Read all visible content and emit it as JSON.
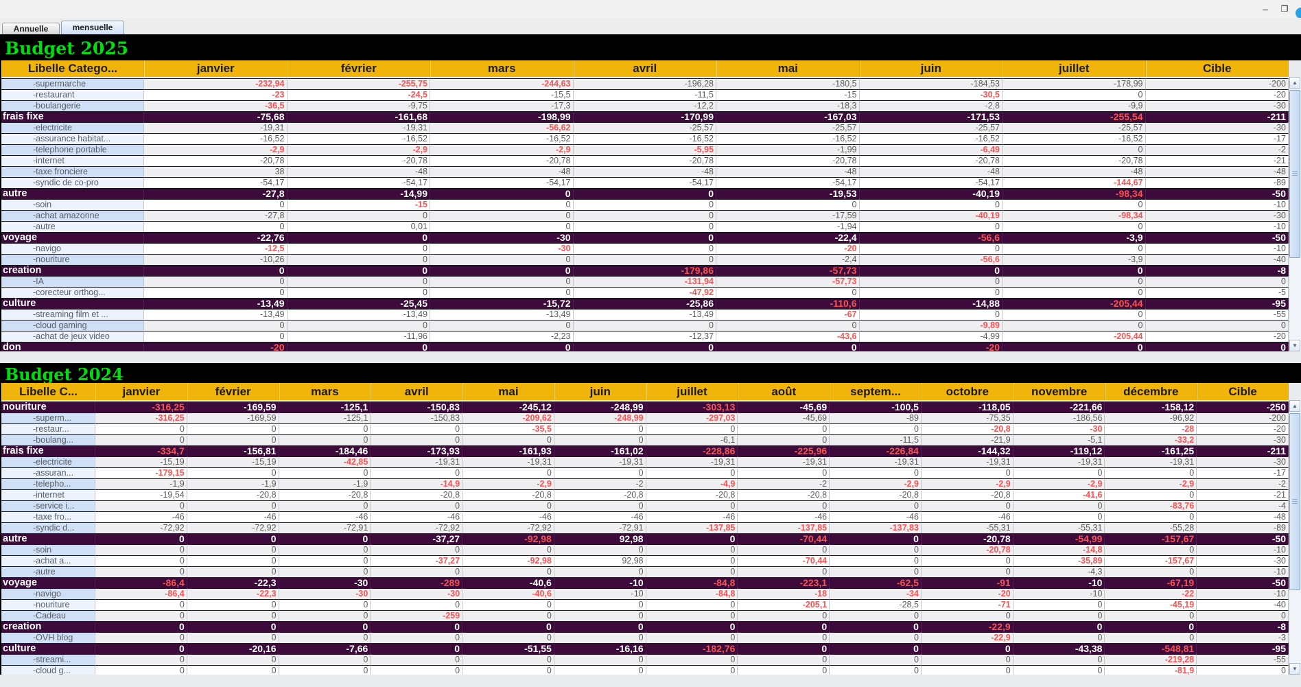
{
  "tabs": {
    "annuelle": "Annuelle",
    "mensuelle": "mensuelle"
  },
  "colors": {
    "header_bg": "#f0b40a",
    "category_bg": "#3c0b3b",
    "over_budget_red": "#fb5353",
    "title_green": "#00dd11",
    "label_blue": "#cfe0f6",
    "stripe_gray": "#efeff1"
  },
  "tables": [
    {
      "id": "budget2025",
      "title": "Budget 2025",
      "columns": [
        "Libelle Catego...",
        "janvier",
        "février",
        "mars",
        "avril",
        "mai",
        "juin",
        "juillet",
        "Cible"
      ],
      "rows": [
        {
          "label": "-supermarche",
          "type": "sub",
          "values": [
            "-232,94",
            "-255,75",
            "-244,63",
            "-196,28",
            "-180,5",
            "-184,53",
            "-178,99",
            "-200"
          ],
          "red": [
            0,
            1,
            2
          ]
        },
        {
          "label": "-restaurant",
          "type": "sub",
          "values": [
            "-23",
            "-24,5",
            "-15,5",
            "-11,5",
            "-15",
            "-30,5",
            "0",
            "-20"
          ],
          "red": [
            0,
            1,
            5
          ]
        },
        {
          "label": "-boulangerie",
          "type": "sub",
          "values": [
            "-36,5",
            "-9,75",
            "-17,3",
            "-12,2",
            "-18,3",
            "-2,8",
            "-9,9",
            "-30"
          ],
          "red": [
            0
          ]
        },
        {
          "label": "frais fixe",
          "type": "cat",
          "values": [
            "-75,68",
            "-161,68",
            "-198,99",
            "-170,99",
            "-167,03",
            "-171,53",
            "-255,54",
            "-211"
          ],
          "red": [
            6
          ]
        },
        {
          "label": "-electricite",
          "type": "sub",
          "values": [
            "-19,31",
            "-19,31",
            "-56,62",
            "-25,57",
            "-25,57",
            "-25,57",
            "-25,57",
            "-30"
          ],
          "red": [
            2
          ]
        },
        {
          "label": "-assurance habitat...",
          "type": "sub",
          "values": [
            "-16,52",
            "-16,52",
            "-16,52",
            "-16,52",
            "-16,52",
            "-16,52",
            "-16,52",
            "-17"
          ],
          "red": []
        },
        {
          "label": "-telephone portable",
          "type": "sub",
          "values": [
            "-2,9",
            "-2,9",
            "-2,9",
            "-5,95",
            "-1,99",
            "-6,49",
            "0",
            "-2"
          ],
          "red": [
            0,
            1,
            2,
            3,
            5
          ]
        },
        {
          "label": "-internet",
          "type": "sub",
          "values": [
            "-20,78",
            "-20,78",
            "-20,78",
            "-20,78",
            "-20,78",
            "-20,78",
            "-20,78",
            "-21"
          ],
          "red": []
        },
        {
          "label": "-taxe fronciere",
          "type": "sub",
          "values": [
            "38",
            "-48",
            "-48",
            "-48",
            "-48",
            "-48",
            "-48",
            "-48"
          ],
          "red": []
        },
        {
          "label": "-syndic de co-pro",
          "type": "sub",
          "values": [
            "-54,17",
            "-54,17",
            "-54,17",
            "-54,17",
            "-54,17",
            "-54,17",
            "-144,67",
            "-89"
          ],
          "red": [
            6
          ]
        },
        {
          "label": "autre",
          "type": "cat",
          "values": [
            "-27,8",
            "-14,99",
            "0",
            "0",
            "-19,53",
            "-40,19",
            "-98,34",
            "-50"
          ],
          "red": [
            6
          ]
        },
        {
          "label": "-soin",
          "type": "sub",
          "values": [
            "0",
            "-15",
            "0",
            "0",
            "0",
            "0",
            "0",
            "-10"
          ],
          "red": [
            1
          ]
        },
        {
          "label": "-achat amazonne",
          "type": "sub",
          "values": [
            "-27,8",
            "0",
            "0",
            "0",
            "-17,59",
            "-40,19",
            "-98,34",
            "-30"
          ],
          "red": [
            5,
            6
          ]
        },
        {
          "label": "-autre",
          "type": "sub",
          "values": [
            "0",
            "0,01",
            "0",
            "0",
            "-1,94",
            "0",
            "0",
            "-10"
          ],
          "red": []
        },
        {
          "label": "voyage",
          "type": "cat",
          "values": [
            "-22,76",
            "0",
            "-30",
            "0",
            "-22,4",
            "-56,6",
            "-3,9",
            "-50"
          ],
          "red": [
            5
          ]
        },
        {
          "label": "-navigo",
          "type": "sub",
          "values": [
            "-12,5",
            "0",
            "-30",
            "0",
            "-20",
            "0",
            "0",
            "-10"
          ],
          "red": [
            0,
            2,
            4
          ]
        },
        {
          "label": "-nouriture",
          "type": "sub",
          "values": [
            "-10,26",
            "0",
            "0",
            "0",
            "-2,4",
            "-56,6",
            "-3,9",
            "-40"
          ],
          "red": [
            5
          ]
        },
        {
          "label": "creation",
          "type": "cat",
          "values": [
            "0",
            "0",
            "0",
            "-179,86",
            "-57,73",
            "0",
            "0",
            "-8"
          ],
          "red": [
            3,
            4
          ]
        },
        {
          "label": "-IA",
          "type": "sub",
          "values": [
            "0",
            "0",
            "0",
            "-131,94",
            "-57,73",
            "0",
            "0",
            "0"
          ],
          "red": [
            3,
            4
          ]
        },
        {
          "label": "-corecteur orthog...",
          "type": "sub",
          "values": [
            "0",
            "0",
            "0",
            "-47,92",
            "0",
            "0",
            "0",
            "-5"
          ],
          "red": [
            3
          ]
        },
        {
          "label": "culture",
          "type": "cat",
          "values": [
            "-13,49",
            "-25,45",
            "-15,72",
            "-25,86",
            "-110,6",
            "-14,88",
            "-205,44",
            "-95"
          ],
          "red": [
            4,
            6
          ]
        },
        {
          "label": "-streaming film et ...",
          "type": "sub",
          "values": [
            "-13,49",
            "-13,49",
            "-13,49",
            "-13,49",
            "-67",
            "0",
            "0",
            "-55"
          ],
          "red": [
            4
          ]
        },
        {
          "label": "-cloud gaming",
          "type": "sub",
          "values": [
            "0",
            "0",
            "0",
            "0",
            "0",
            "-9,89",
            "0",
            "0"
          ],
          "red": [
            5
          ]
        },
        {
          "label": "-achat de jeux video",
          "type": "sub",
          "values": [
            "0",
            "-11,96",
            "-2,23",
            "-12,37",
            "-43,6",
            "-4,99",
            "-205,44",
            "-20"
          ],
          "red": [
            4,
            6
          ]
        },
        {
          "label": "don",
          "type": "cat",
          "values": [
            "-20",
            "0",
            "0",
            "0",
            "0",
            "-20",
            "0",
            "0"
          ],
          "red": [
            0,
            5
          ]
        }
      ]
    },
    {
      "id": "budget2024",
      "title": "Budget 2024",
      "columns": [
        "Libelle C...",
        "janvier",
        "février",
        "mars",
        "avril",
        "mai",
        "juin",
        "juillet",
        "août",
        "septem...",
        "octobre",
        "novembre",
        "décembre",
        "Cible"
      ],
      "rows": [
        {
          "label": "nouriture",
          "type": "cat",
          "values": [
            "-316,25",
            "-169,59",
            "-125,1",
            "-150,83",
            "-245,12",
            "-248,99",
            "-303,13",
            "-45,69",
            "-100,5",
            "-118,05",
            "-221,66",
            "-158,12",
            "-250"
          ],
          "red": [
            0,
            6
          ]
        },
        {
          "label": "-superm...",
          "type": "sub",
          "values": [
            "-316,25",
            "-169,59",
            "-125,1",
            "-150,83",
            "-209,62",
            "-248,99",
            "-297,03",
            "-45,69",
            "-89",
            "-75,35",
            "-186,56",
            "-96,92",
            "-200"
          ],
          "red": [
            0,
            4,
            5,
            6
          ]
        },
        {
          "label": "-restaur...",
          "type": "sub",
          "values": [
            "0",
            "0",
            "0",
            "0",
            "-35,5",
            "0",
            "0",
            "0",
            "0",
            "-20,8",
            "-30",
            "-28",
            "-20"
          ],
          "red": [
            4,
            9,
            10,
            11
          ]
        },
        {
          "label": "-boulang...",
          "type": "sub",
          "values": [
            "0",
            "0",
            "0",
            "0",
            "0",
            "0",
            "-6,1",
            "0",
            "-11,5",
            "-21,9",
            "-5,1",
            "-33,2",
            "-30"
          ],
          "red": [
            11
          ]
        },
        {
          "label": "frais fixe",
          "type": "cat",
          "values": [
            "-334,7",
            "-156,81",
            "-184,46",
            "-173,93",
            "-161,93",
            "-161,02",
            "-228,86",
            "-225,96",
            "-226,84",
            "-144,32",
            "-119,12",
            "-161,25",
            "-211"
          ],
          "red": [
            0,
            6,
            7,
            8
          ]
        },
        {
          "label": "-electricite",
          "type": "sub",
          "values": [
            "-15,19",
            "-15,19",
            "-42,85",
            "-19,31",
            "-19,31",
            "-19,31",
            "-19,31",
            "-19,31",
            "-19,31",
            "-19,31",
            "-19,31",
            "-19,31",
            "-30"
          ],
          "red": [
            2
          ]
        },
        {
          "label": "-assuran...",
          "type": "sub",
          "values": [
            "-179,15",
            "0",
            "0",
            "0",
            "0",
            "0",
            "0",
            "0",
            "0",
            "0",
            "0",
            "0",
            "-17"
          ],
          "red": [
            0
          ]
        },
        {
          "label": "-telepho...",
          "type": "sub",
          "values": [
            "-1,9",
            "-1,9",
            "-1,9",
            "-14,9",
            "-2,9",
            "-2",
            "-4,9",
            "-2",
            "-2,9",
            "-2,9",
            "-2,9",
            "-2,9",
            "-2"
          ],
          "red": [
            3,
            4,
            6,
            8,
            9,
            10,
            11
          ]
        },
        {
          "label": "-internet",
          "type": "sub",
          "values": [
            "-19,54",
            "-20,8",
            "-20,8",
            "-20,8",
            "-20,8",
            "-20,8",
            "-20,8",
            "-20,8",
            "-20,8",
            "-20,8",
            "-41,6",
            "0",
            "-21"
          ],
          "red": [
            10
          ]
        },
        {
          "label": "-service i...",
          "type": "sub",
          "values": [
            "0",
            "0",
            "0",
            "0",
            "0",
            "0",
            "0",
            "0",
            "0",
            "0",
            "0",
            "-83,76",
            "-4"
          ],
          "red": [
            11
          ]
        },
        {
          "label": "-taxe fro...",
          "type": "sub",
          "values": [
            "-46",
            "-46",
            "-46",
            "-46",
            "-46",
            "-46",
            "-46",
            "-46",
            "-46",
            "-46",
            "0",
            "0",
            "-48"
          ],
          "red": []
        },
        {
          "label": "-syndic d...",
          "type": "sub",
          "values": [
            "-72,92",
            "-72,92",
            "-72,91",
            "-72,92",
            "-72,92",
            "-72,91",
            "-137,85",
            "-137,85",
            "-137,83",
            "-55,31",
            "-55,31",
            "-55,28",
            "-89"
          ],
          "red": [
            6,
            7,
            8
          ]
        },
        {
          "label": "autre",
          "type": "cat",
          "values": [
            "0",
            "0",
            "0",
            "-37,27",
            "-92,98",
            "92,98",
            "0",
            "-70,44",
            "0",
            "-20,78",
            "-54,99",
            "-157,67",
            "-50"
          ],
          "red": [
            4,
            7,
            10,
            11
          ]
        },
        {
          "label": "-soin",
          "type": "sub",
          "values": [
            "0",
            "0",
            "0",
            "0",
            "0",
            "0",
            "0",
            "0",
            "0",
            "-20,78",
            "-14,8",
            "0",
            "-10"
          ],
          "red": [
            9,
            10
          ]
        },
        {
          "label": "-achat a...",
          "type": "sub",
          "values": [
            "0",
            "0",
            "0",
            "-37,27",
            "-92,98",
            "92,98",
            "0",
            "-70,44",
            "0",
            "0",
            "-35,89",
            "-157,67",
            "-30"
          ],
          "red": [
            3,
            4,
            7,
            10,
            11
          ]
        },
        {
          "label": "-autre",
          "type": "sub",
          "values": [
            "0",
            "0",
            "0",
            "0",
            "0",
            "0",
            "0",
            "0",
            "0",
            "0",
            "-4,3",
            "0",
            "-10"
          ],
          "red": []
        },
        {
          "label": "voyage",
          "type": "cat",
          "values": [
            "-86,4",
            "-22,3",
            "-30",
            "-289",
            "-40,6",
            "-10",
            "-84,8",
            "-223,1",
            "-62,5",
            "-91",
            "-10",
            "-67,19",
            "-50"
          ],
          "red": [
            0,
            3,
            6,
            7,
            8,
            9,
            11
          ]
        },
        {
          "label": "-navigo",
          "type": "sub",
          "values": [
            "-86,4",
            "-22,3",
            "-30",
            "-30",
            "-40,6",
            "-10",
            "-84,8",
            "-18",
            "-34",
            "-20",
            "-10",
            "-22",
            "-10"
          ],
          "red": [
            0,
            1,
            2,
            3,
            4,
            6,
            7,
            8,
            9,
            11
          ]
        },
        {
          "label": "-nouriture",
          "type": "sub",
          "values": [
            "0",
            "0",
            "0",
            "0",
            "0",
            "0",
            "0",
            "-205,1",
            "-28,5",
            "-71",
            "0",
            "-45,19",
            "-40"
          ],
          "red": [
            7,
            9,
            11
          ]
        },
        {
          "label": "-Cadeau",
          "type": "sub",
          "values": [
            "0",
            "0",
            "0",
            "-259",
            "0",
            "0",
            "0",
            "0",
            "0",
            "0",
            "0",
            "0",
            "0"
          ],
          "red": [
            3
          ]
        },
        {
          "label": "creation",
          "type": "cat",
          "values": [
            "0",
            "0",
            "0",
            "0",
            "0",
            "0",
            "0",
            "0",
            "0",
            "-22,9",
            "0",
            "0",
            "-8"
          ],
          "red": [
            9
          ]
        },
        {
          "label": "-OVH blog",
          "type": "sub",
          "values": [
            "0",
            "0",
            "0",
            "0",
            "0",
            "0",
            "0",
            "0",
            "0",
            "-22,9",
            "0",
            "0",
            "-3"
          ],
          "red": [
            9
          ]
        },
        {
          "label": "culture",
          "type": "cat",
          "values": [
            "0",
            "-20,16",
            "-7,66",
            "0",
            "-51,55",
            "-16,16",
            "-182,76",
            "0",
            "0",
            "0",
            "-43,38",
            "-548,81",
            "-95"
          ],
          "red": [
            6,
            11
          ]
        },
        {
          "label": "-streami...",
          "type": "sub",
          "values": [
            "0",
            "0",
            "0",
            "0",
            "0",
            "0",
            "0",
            "0",
            "0",
            "0",
            "0",
            "-219,28",
            "-55"
          ],
          "red": [
            11
          ]
        },
        {
          "label": "-cloud g...",
          "type": "sub",
          "values": [
            "0",
            "0",
            "0",
            "0",
            "0",
            "0",
            "0",
            "0",
            "0",
            "0",
            "0",
            "-81,9",
            "0"
          ],
          "red": [
            11
          ]
        }
      ]
    }
  ]
}
